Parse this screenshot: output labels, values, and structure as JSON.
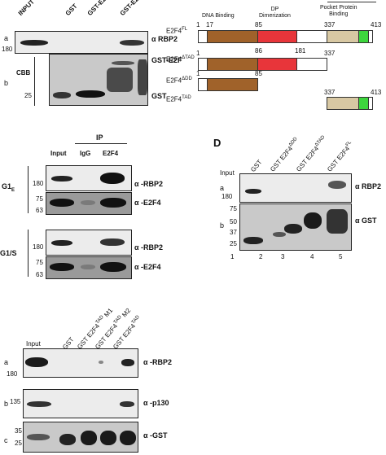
{
  "panel_a": {
    "lanes": [
      "INPUT",
      "GST",
      "GST-E2F1",
      "GST-E2F4"
    ],
    "label_a": "a",
    "label_b": "b",
    "marker_a": "180",
    "marker_b": "25",
    "cbb": "CBB",
    "antibody_rbp2": "α RBP2",
    "label_gst_e2f": "GST-E2F",
    "label_gst": "GST"
  },
  "schematic": {
    "pocket_label": "Pocket Protein\nBinding",
    "dna_label": "DNA Binding",
    "dp_label": "DP\nDimerization",
    "constructs": [
      {
        "name": "E2F4",
        "sup": "FL"
      },
      {
        "name": "E2F4",
        "sup": "ΔTAD"
      },
      {
        "name": "E2F4",
        "sup": "ΔDD"
      },
      {
        "name": "E2F4",
        "sup": "TAD"
      }
    ],
    "positions": {
      "fl": [
        "1",
        "17",
        "85",
        "86",
        "181",
        "337",
        "413"
      ],
      "dtad": [
        "1",
        "337"
      ],
      "ddd": [
        "1",
        "85"
      ],
      "tad": [
        "337",
        "413"
      ]
    },
    "colors": {
      "dna": "#a0622a",
      "dp": "#e8353a",
      "tad": "#d8c8a3",
      "pocket": "#3dd63d"
    }
  },
  "panel_c": {
    "ip": "IP",
    "lanes": [
      "Input",
      "IgG",
      "E2F4"
    ],
    "phase_g1e": "G1",
    "phase_g1e_sub": "E",
    "phase_g1s": "G1/S",
    "markers": [
      "180",
      "75",
      "63",
      "180",
      "75",
      "63"
    ],
    "antibodies": [
      "α -RBP2",
      "α -E2F4",
      "α -RBP2",
      "α -E2F4"
    ]
  },
  "panel_d": {
    "letter": "D",
    "lanes": [
      "Input",
      "GST",
      "GST E2F4",
      "GST E2F4",
      "GST E2F4"
    ],
    "lane_sups": [
      "",
      "",
      "ΔDD",
      "ΔTAD",
      "FL"
    ],
    "label_a": "a",
    "label_b": "b",
    "marker_a": "180",
    "markers_b": [
      "75",
      "50",
      "37",
      "25"
    ],
    "antibody_a": "α RBP2",
    "antibody_b": "α GST",
    "lane_numbers": [
      "1",
      "2",
      "3",
      "4",
      "5"
    ]
  },
  "panel_e": {
    "lanes": [
      "Input",
      "GST",
      "GST E2F4",
      "GST E2F4",
      "GST E2F4"
    ],
    "lane_sups": [
      "",
      "",
      "TAD",
      "TAD",
      "TAD"
    ],
    "lane_suffix": [
      "",
      "",
      " M1",
      " M2",
      ""
    ],
    "labels": [
      "a",
      "b",
      "c"
    ],
    "markers": [
      "180",
      "135",
      "35",
      "25"
    ],
    "antibodies": [
      "α -RBP2",
      "α -p130",
      "α -GST"
    ]
  }
}
